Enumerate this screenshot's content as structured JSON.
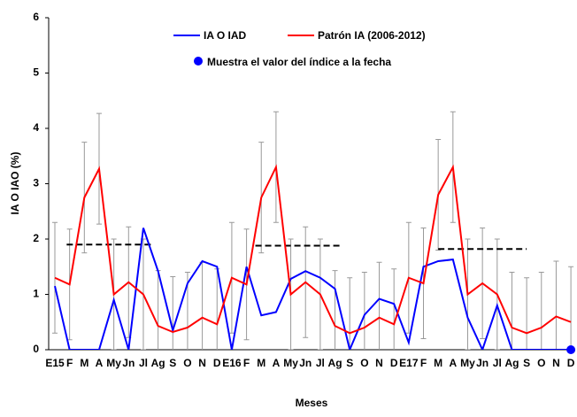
{
  "chart_data": {
    "type": "line",
    "x_label": "Meses",
    "y_label": "IA O IAO (%)",
    "categories": [
      "E15",
      "F",
      "M",
      "A",
      "My",
      "Jn",
      "Jl",
      "Ag",
      "S",
      "O",
      "N",
      "D",
      "E16",
      "F",
      "M",
      "A",
      "My",
      "Jn",
      "Jl",
      "Ag",
      "S",
      "O",
      "N",
      "D",
      "E17",
      "F",
      "M",
      "A",
      "My",
      "Jn",
      "Jl",
      "Ag",
      "S",
      "O",
      "N",
      "D"
    ],
    "series": [
      {
        "name": "IA O IAD",
        "color": "#0000ff",
        "values": [
          1.15,
          0,
          0,
          0,
          0.9,
          0,
          2.2,
          1.42,
          0.35,
          1.2,
          1.6,
          1.5,
          0,
          1.5,
          0.62,
          0.68,
          1.28,
          1.42,
          1.3,
          1.1,
          0,
          0.63,
          0.92,
          0.83,
          0.13,
          1.5,
          1.6,
          1.63,
          0.58,
          0,
          0.8,
          0,
          0,
          0,
          0,
          0
        ]
      },
      {
        "name": "Patrón IA (2006-2012)",
        "color": "#ff0000",
        "values": [
          1.3,
          1.18,
          2.75,
          3.27,
          1.0,
          1.22,
          1.0,
          0.43,
          0.32,
          0.4,
          0.58,
          0.46,
          1.3,
          1.18,
          2.75,
          3.3,
          1.0,
          1.22,
          1.0,
          0.43,
          0.3,
          0.4,
          0.58,
          0.46,
          1.3,
          1.2,
          2.8,
          3.3,
          1.0,
          1.2,
          1.0,
          0.4,
          0.3,
          0.4,
          0.6,
          0.5
        ],
        "errors": [
          1,
          1,
          1,
          1,
          1,
          1,
          1,
          1,
          1,
          1,
          1,
          1,
          1,
          1,
          1,
          1,
          1,
          1,
          1,
          1,
          1,
          1,
          1,
          1,
          1,
          1,
          1,
          1,
          1,
          1,
          1,
          1,
          1,
          1,
          1,
          1
        ],
        "error_color": "#999999"
      }
    ],
    "current_marker_label": "Muestra el valor del índice a la fecha",
    "dashed_lines": [
      {
        "x": [
          0.8,
          6.6
        ],
        "value": 1.9
      },
      {
        "x": [
          13.6,
          19.4
        ],
        "value": 1.88
      },
      {
        "x": [
          26,
          32
        ],
        "value": 1.82
      }
    ],
    "ylim": [
      0,
      6
    ],
    "yticks": [
      0,
      1,
      2,
      3,
      4,
      5,
      6
    ]
  }
}
